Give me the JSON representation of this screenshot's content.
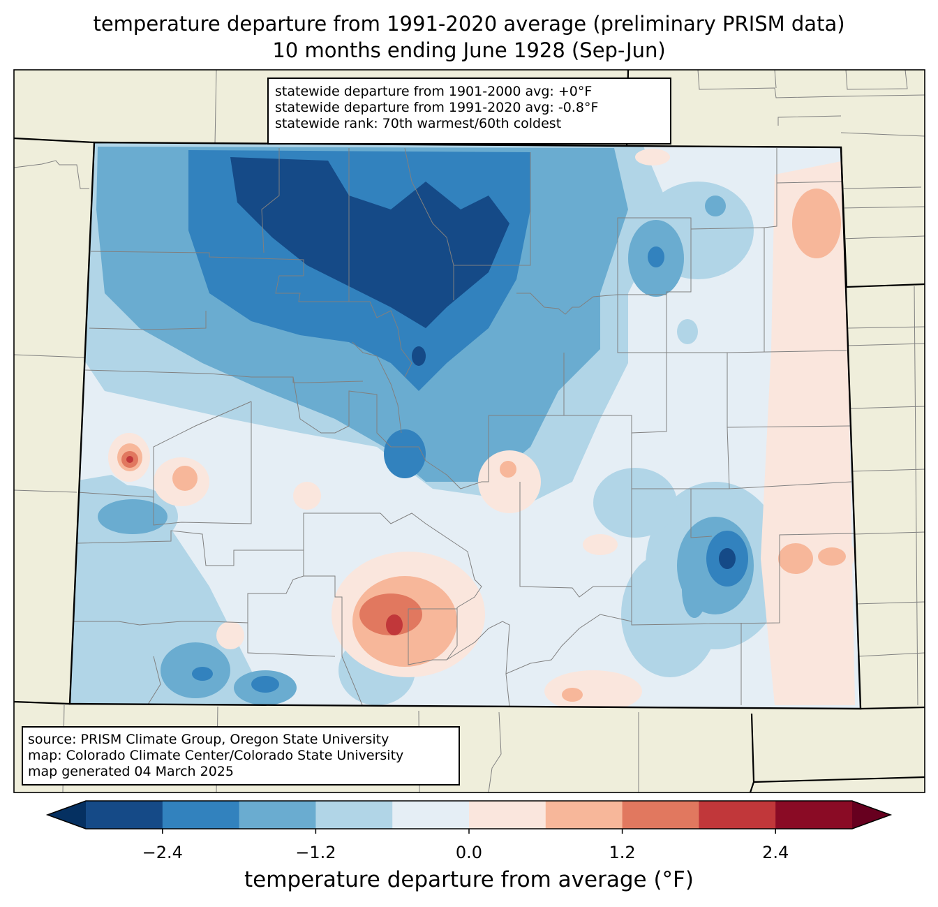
{
  "title": {
    "line1": "temperature departure from 1991-2020 average (preliminary PRISM data)",
    "line2": "10 months ending June 1928 (Sep-Jun)"
  },
  "stats": {
    "line1": "statewide departure from 1901-2000 avg: +0°F",
    "line2": "statewide departure from 1991-2020 avg: -0.8°F",
    "line3": "statewide rank: 70th warmest/60th coldest"
  },
  "credits": {
    "line1": "source: PRISM Climate Group, Oregon State University",
    "line2": "map: Colorado Climate Center/Colorado State University",
    "line3": "map generated 04 March 2025"
  },
  "colorbar": {
    "label": "temperature departure from average (°F)",
    "ticks": [
      "−2.4",
      "−1.2",
      "0.0",
      "1.2",
      "2.4"
    ],
    "tick_values": [
      -2.4,
      -1.2,
      0.0,
      1.2,
      2.4
    ],
    "bounds": [
      -3.0,
      3.0
    ],
    "step": 0.6,
    "under_color": "#053061",
    "over_color": "#67001f",
    "colors": [
      "#154a87",
      "#3282be",
      "#6aacd0",
      "#b1d5e7",
      "#e5eef5",
      "#fae6dd",
      "#f7b79a",
      "#e1785f",
      "#c1373a",
      "#8a0b25"
    ]
  },
  "map_colors": {
    "land_background": "#efeedb",
    "state_border": "#000000",
    "county_lines": "#808080"
  }
}
